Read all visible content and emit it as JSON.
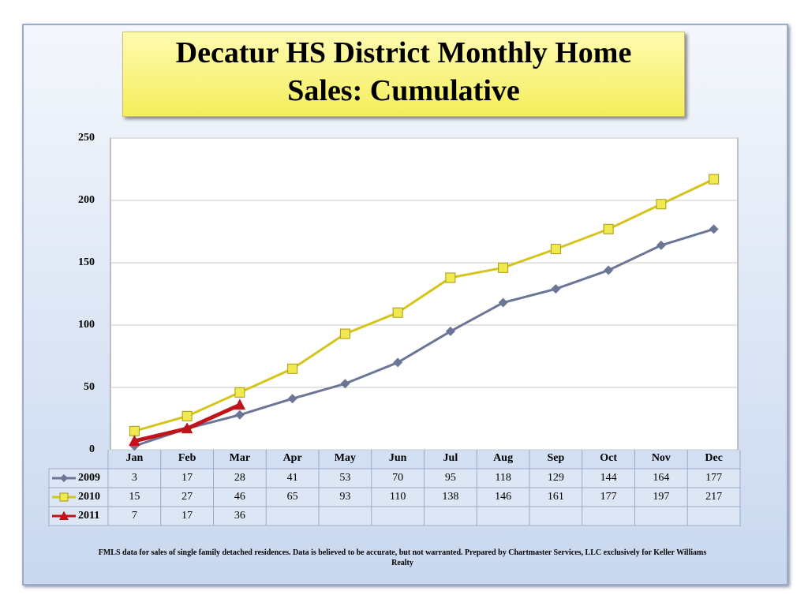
{
  "chart_data": {
    "type": "line",
    "title": "Decatur HS District Monthly Home Sales: Cumulative",
    "categories": [
      "Jan",
      "Feb",
      "Mar",
      "Apr",
      "May",
      "Jun",
      "Jul",
      "Aug",
      "Sep",
      "Oct",
      "Nov",
      "Dec"
    ],
    "series": [
      {
        "name": "2009",
        "color": "#6b7596",
        "marker": "diamond",
        "values": [
          3,
          17,
          28,
          41,
          53,
          70,
          95,
          118,
          129,
          144,
          164,
          177
        ]
      },
      {
        "name": "2010",
        "color": "#d4c41c",
        "marker": "square",
        "values": [
          15,
          27,
          46,
          65,
          93,
          110,
          138,
          146,
          161,
          177,
          197,
          217
        ]
      },
      {
        "name": "2011",
        "color": "#c0141a",
        "marker": "triangle",
        "values": [
          7,
          17,
          36,
          null,
          null,
          null,
          null,
          null,
          null,
          null,
          null,
          null
        ]
      }
    ],
    "ylim": [
      0,
      250
    ],
    "yticks": [
      0,
      50,
      100,
      150,
      200,
      250
    ],
    "grid": true,
    "note": "FMLS data for sales of single family detached residences.  Data is believed to be accurate, but not warranted.    Prepared by Chartmaster Services, LLC exclusively for Keller Williams Realty"
  }
}
